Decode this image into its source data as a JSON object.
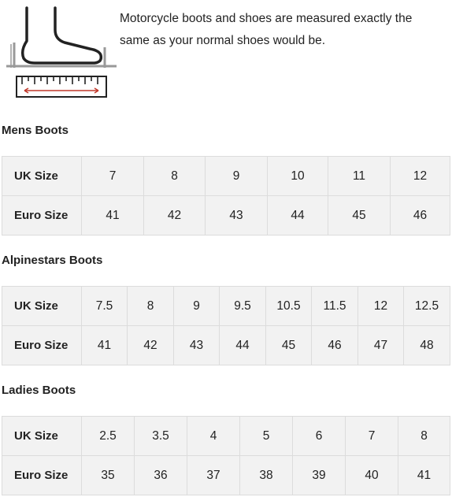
{
  "intro": {
    "icon": "foot-measurement-icon",
    "text": "Motorcycle boots and shoes are measured exactly the same as your normal shoes would be."
  },
  "colors": {
    "table_background": "#f2f2f2",
    "border": "#dcdcdc",
    "text": "#222222",
    "ruler_arrow": "#c0392b"
  },
  "tables": [
    {
      "heading": "Mens Boots",
      "rows": [
        {
          "label": "UK Size",
          "values": [
            "7",
            "8",
            "9",
            "10",
            "11",
            "12"
          ]
        },
        {
          "label": "Euro Size",
          "values": [
            "41",
            "42",
            "43",
            "44",
            "45",
            "46"
          ]
        }
      ]
    },
    {
      "heading": "Alpinestars Boots",
      "rows": [
        {
          "label": "UK Size",
          "values": [
            "7.5",
            "8",
            "9",
            "9.5",
            "10.5",
            "11.5",
            "12",
            "12.5"
          ]
        },
        {
          "label": "Euro Size",
          "values": [
            "41",
            "42",
            "43",
            "44",
            "45",
            "46",
            "47",
            "48"
          ]
        }
      ]
    },
    {
      "heading": "Ladies Boots",
      "rows": [
        {
          "label": "UK Size",
          "values": [
            "2.5",
            "3.5",
            "4",
            "5",
            "6",
            "7",
            "8"
          ]
        },
        {
          "label": "Euro Size",
          "values": [
            "35",
            "36",
            "37",
            "38",
            "39",
            "40",
            "41"
          ]
        }
      ]
    }
  ]
}
